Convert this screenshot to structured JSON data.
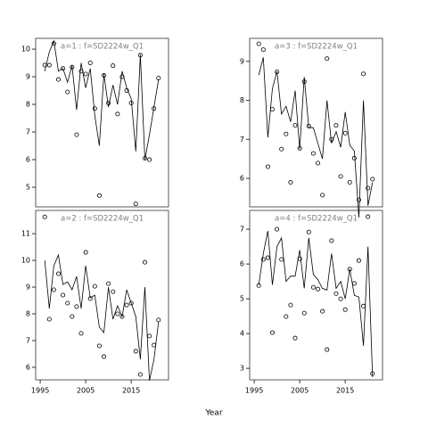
{
  "xlabel": "Year",
  "chart_data": [
    {
      "type": "line",
      "title": "a=1  :  f=SD2224w_Q1",
      "x": [
        1996,
        1997,
        1998,
        1999,
        2000,
        2001,
        2002,
        2003,
        2004,
        2005,
        2006,
        2007,
        2008,
        2009,
        2010,
        2011,
        2012,
        2013,
        2014,
        2015,
        2016,
        2017,
        2018,
        2019,
        2020,
        2021
      ],
      "series": [
        {
          "style": "line",
          "color": "#000000",
          "values": [
            9.2,
            9.9,
            10.3,
            9.2,
            9.3,
            8.8,
            9.4,
            7.8,
            9.5,
            8.6,
            9.3,
            7.6,
            6.5,
            9.1,
            7.9,
            8.7,
            8.0,
            9.2,
            8.6,
            8.2,
            6.3,
            9.8,
            6.0,
            6.9,
            7.9,
            8.9
          ]
        },
        {
          "style": "points",
          "color": "#000000",
          "values": [
            9.42,
            9.42,
            10.2,
            8.9,
            9.3,
            8.45,
            9.35,
            6.9,
            9.2,
            9.1,
            9.5,
            7.85,
            4.7,
            9.05,
            8.05,
            9.4,
            7.65,
            9.0,
            8.5,
            8.05,
            4.4,
            9.78,
            6.05,
            6.0,
            7.85,
            8.95
          ]
        }
      ],
      "xlim": [
        1994,
        2023.2
      ],
      "ylim": [
        4.29,
        10.39
      ],
      "yticks": [
        5,
        6,
        7,
        8,
        9,
        10
      ]
    },
    {
      "type": "line",
      "title": "a=3  :  f=SD2224w_Q1",
      "x": [
        1996,
        1997,
        1998,
        1999,
        2000,
        2001,
        2002,
        2003,
        2004,
        2005,
        2006,
        2007,
        2008,
        2009,
        2010,
        2011,
        2012,
        2013,
        2014,
        2015,
        2016,
        2017,
        2018,
        2019,
        2020,
        2021
      ],
      "series": [
        {
          "style": "line",
          "color": "#000000",
          "values": [
            8.65,
            9.1,
            7.05,
            8.3,
            8.75,
            7.65,
            7.85,
            7.45,
            8.25,
            6.75,
            8.6,
            7.3,
            7.3,
            6.9,
            6.5,
            8.0,
            6.9,
            7.2,
            6.8,
            7.7,
            6.85,
            6.7,
            5.0,
            8.0,
            5.3,
            5.9
          ]
        },
        {
          "style": "points",
          "color": "#000000",
          "values": [
            9.45,
            9.3,
            6.3,
            7.77,
            8.73,
            6.75,
            7.14,
            5.9,
            7.36,
            6.77,
            8.48,
            7.34,
            6.64,
            6.39,
            5.57,
            9.07,
            7.0,
            7.36,
            6.05,
            7.16,
            5.9,
            6.52,
            5.45,
            8.68,
            5.75,
            5.98
          ]
        }
      ],
      "xlim": [
        1994,
        2023.2
      ],
      "ylim": [
        5.27,
        9.59
      ],
      "yticks": [
        6,
        7,
        8,
        9
      ]
    },
    {
      "type": "line",
      "title": "a=2  :  f=SD2224w_Q1",
      "x": [
        1996,
        1997,
        1998,
        1999,
        2000,
        2001,
        2002,
        2003,
        2004,
        2005,
        2006,
        2007,
        2008,
        2009,
        2010,
        2011,
        2012,
        2013,
        2014,
        2015,
        2016,
        2017,
        2018,
        2019,
        2020,
        2021
      ],
      "series": [
        {
          "style": "line",
          "color": "#000000",
          "values": [
            10.0,
            8.2,
            9.8,
            10.2,
            9.1,
            9.2,
            8.9,
            9.4,
            8.2,
            9.8,
            8.6,
            8.7,
            7.5,
            7.3,
            9.0,
            7.8,
            8.3,
            7.9,
            8.9,
            8.4,
            7.9,
            6.3,
            9.0,
            5.5,
            6.3,
            7.7
          ]
        },
        {
          "style": "points",
          "color": "#000000",
          "values": [
            11.63,
            7.8,
            8.9,
            9.5,
            8.7,
            8.4,
            7.9,
            8.27,
            7.27,
            10.3,
            8.57,
            9.03,
            6.8,
            6.4,
            9.13,
            8.83,
            8.0,
            7.9,
            8.33,
            8.4,
            6.6,
            5.73,
            9.93,
            7.17,
            6.83,
            7.77
          ]
        }
      ],
      "xlim": [
        1994,
        2023.2
      ],
      "ylim": [
        5.53,
        11.87
      ],
      "yticks": [
        6,
        7,
        8,
        9,
        10,
        11
      ],
      "xticks": [
        1995,
        2005,
        2015
      ]
    },
    {
      "type": "line",
      "title": "a=4  :  f=SD2224w_Q1",
      "x": [
        1996,
        1997,
        1998,
        1999,
        2000,
        2001,
        2002,
        2003,
        2004,
        2005,
        2006,
        2007,
        2008,
        2009,
        2010,
        2011,
        2012,
        2013,
        2014,
        2015,
        2016,
        2017,
        2018,
        2019,
        2020,
        2021
      ],
      "series": [
        {
          "style": "line",
          "color": "#000000",
          "values": [
            5.4,
            6.3,
            6.95,
            5.4,
            6.5,
            6.75,
            5.5,
            5.65,
            5.65,
            6.4,
            5.3,
            6.75,
            5.7,
            5.55,
            5.3,
            5.25,
            6.3,
            5.3,
            5.5,
            5.0,
            5.85,
            5.1,
            5.05,
            3.65,
            6.5,
            2.75
          ]
        },
        {
          "style": "points",
          "color": "#000000",
          "values": [
            5.38,
            6.13,
            6.18,
            4.03,
            7.0,
            6.13,
            4.49,
            4.82,
            3.87,
            6.15,
            4.59,
            6.92,
            5.33,
            5.28,
            4.64,
            3.54,
            6.67,
            5.15,
            5.0,
            4.69,
            5.85,
            5.44,
            6.1,
            4.79,
            7.36,
            2.85
          ]
        }
      ],
      "xlim": [
        1994,
        2023.2
      ],
      "ylim": [
        2.67,
        7.54
      ],
      "yticks": [
        3,
        4,
        5,
        6,
        7
      ],
      "xticks": [
        1995,
        2005,
        2015
      ]
    }
  ]
}
